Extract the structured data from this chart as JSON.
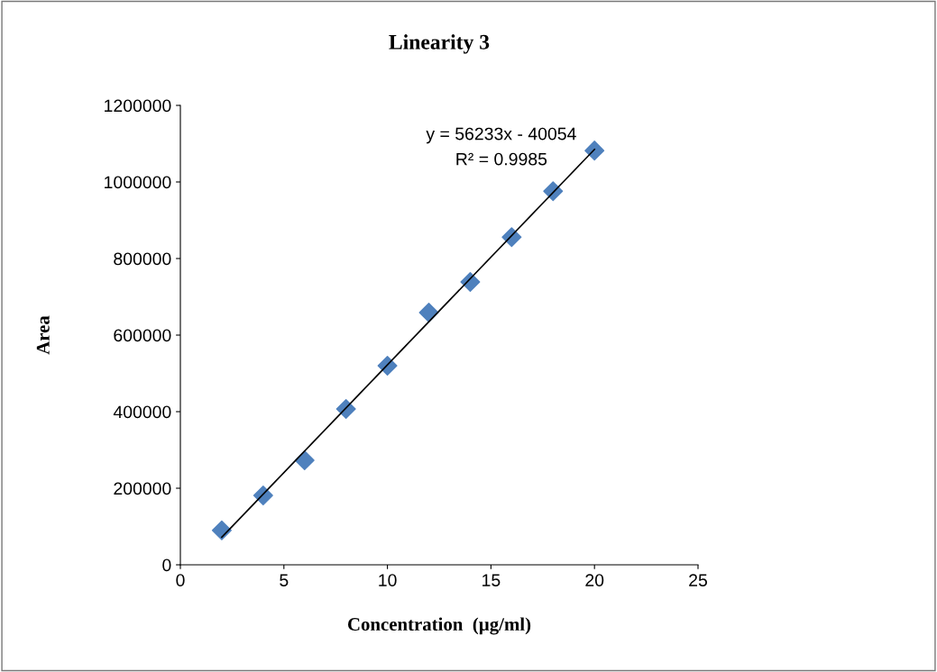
{
  "chart_data": {
    "type": "scatter",
    "title": "Linearity 3",
    "xlabel": "Concentration  (µg/ml)",
    "ylabel": "Area",
    "x": [
      2,
      4,
      6,
      8,
      10,
      12,
      14,
      16,
      18,
      20
    ],
    "series": [
      {
        "color": "#4f81bd",
        "marker": "diamond",
        "values": [
          90000,
          181000,
          273000,
          407000,
          520000,
          659000,
          739000,
          856000,
          976000,
          1082000
        ]
      },
      {
        "type": "line",
        "color": "#000000",
        "marker": "none",
        "line_style": "solid",
        "x": [
          2,
          20
        ],
        "values": [
          72000,
          1085000
        ]
      }
    ],
    "annotations": [
      "y = 56233x - 40054",
      "R² = 0.9985"
    ],
    "xlim": [
      0,
      25
    ],
    "xticks": [
      0,
      5,
      10,
      15,
      20,
      25
    ],
    "ylim": [
      0,
      1200000
    ],
    "yticks": [
      0,
      200000,
      400000,
      600000,
      800000,
      1000000,
      1200000
    ],
    "grid": false,
    "legend": false
  }
}
